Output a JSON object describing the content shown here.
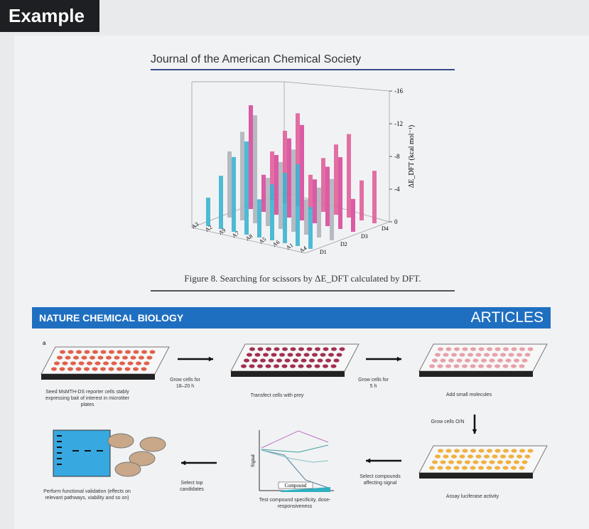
{
  "header": {
    "title": "Example"
  },
  "figure1": {
    "journal": "Journal of the American Chemical Society",
    "z_axis_label": "ΔE_DFT (kcal mol⁻¹)",
    "z_ticks": [
      0,
      -4,
      -8,
      -12,
      -16
    ],
    "rows": [
      "A3",
      "A2",
      "A9",
      "A7",
      "A8",
      "A5",
      "A6",
      "A1",
      "A4"
    ],
    "depth": [
      "D1",
      "D2",
      "D3",
      "D4"
    ],
    "caption": "Figure 8. Searching for scissors by ΔE_DFT calculated by DFT."
  },
  "figure2": {
    "journal": "NATURE CHEMICAL BIOLOGY",
    "section": "ARTICLES",
    "panel": "a",
    "steps": [
      "Seed MsMTH-DS reporter cells stably expressing bait of interest in microtiter plates",
      "Transfect cells with prey",
      "Add small molecules",
      "Assay luciferase activity",
      "Test compound specificity, dose-responsiveness",
      "Perform functional validation (effects on relevant pathways, viability and so on)"
    ],
    "arrows": [
      "Grow cells for 18–20 h",
      "Grow cells for 5 h",
      "Grow cells O/N",
      "Select compounds affecting signal",
      "Select top candidates"
    ],
    "plot": {
      "y_label": "Signal",
      "x_label": "Compound"
    }
  }
}
